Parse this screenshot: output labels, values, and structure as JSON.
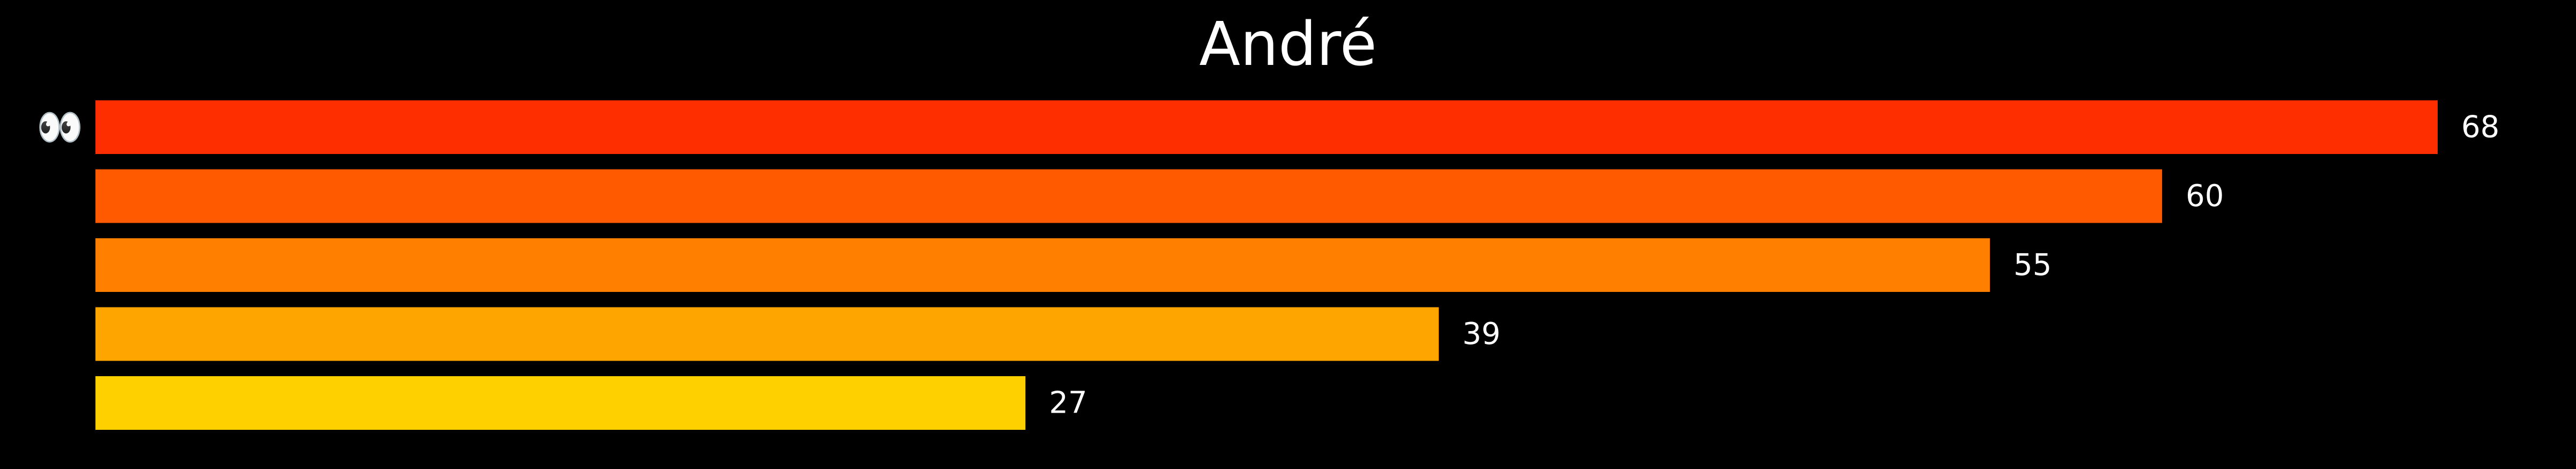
{
  "chart_data": {
    "type": "bar",
    "orientation": "horizontal",
    "title": "André",
    "xlabel": "",
    "ylabel": "",
    "xlim": [
      0,
      68
    ],
    "grid": false,
    "legend": "none",
    "background": "#000000",
    "categories": [
      "👀",
      "😡",
      "😳",
      "😔",
      "😼"
    ],
    "category_icons": [
      "eyes-emoji-icon",
      "pouting-face-emoji-icon",
      "flushed-face-emoji-icon",
      "pensive-face-emoji-icon",
      "cat-wry-smile-emoji-icon"
    ],
    "values": [
      68,
      60,
      55,
      39,
      27
    ],
    "colors": [
      "#ff2e00",
      "#ff5a00",
      "#ff7f00",
      "#ffa500",
      "#ffd000"
    ],
    "value_labels": [
      "68",
      "60",
      "55",
      "39",
      "27"
    ]
  }
}
